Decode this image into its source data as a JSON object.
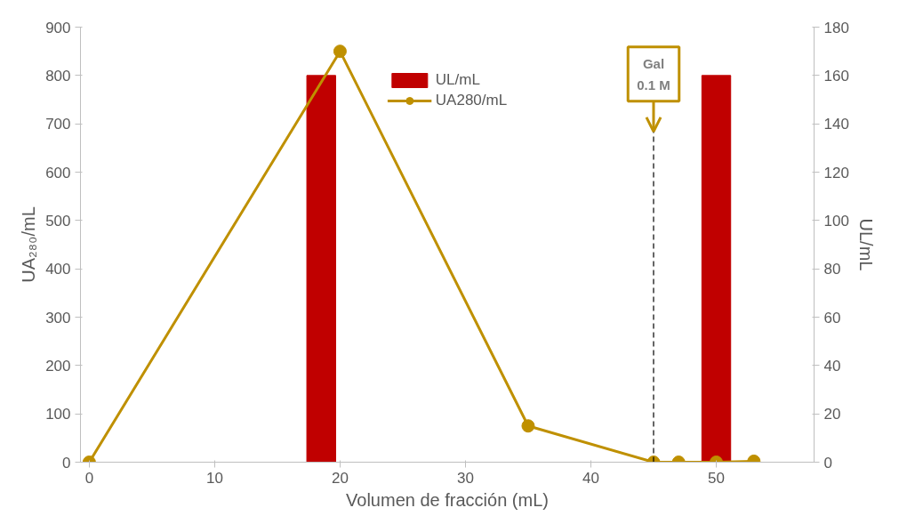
{
  "chart_data": {
    "type": "line",
    "xlabel": "Volumen de fracción (mL)",
    "ylabel": "UA₂₈₀/mL",
    "y2label": "UL/mL",
    "xlim": [
      -0.7,
      57.8
    ],
    "xticks": [
      0,
      10,
      20,
      30,
      40,
      50
    ],
    "ylim": [
      0,
      900
    ],
    "yticks": [
      0,
      100,
      200,
      300,
      400,
      500,
      600,
      700,
      800,
      900
    ],
    "y2lim": [
      0,
      180
    ],
    "y2ticks": [
      0,
      20,
      40,
      60,
      80,
      100,
      120,
      140,
      160,
      180
    ],
    "series": [
      {
        "name": "UL/mL",
        "type": "bar",
        "axis": "y2",
        "color": "#c00000",
        "x": [
          18.5,
          50
        ],
        "values": [
          160,
          160
        ]
      },
      {
        "name": "UA280/mL",
        "color": "#bf9000",
        "x": [
          0,
          20,
          35,
          45,
          47,
          50,
          53
        ],
        "values": [
          0,
          850,
          75,
          0,
          0,
          0,
          2
        ]
      }
    ],
    "ref_lines": [
      {
        "axis": "x",
        "value": 45,
        "label": "Gal\n0.1 M",
        "color": "#000000",
        "line_style": "dashed"
      }
    ],
    "marker": "circle",
    "grid": false,
    "legend": "top"
  }
}
